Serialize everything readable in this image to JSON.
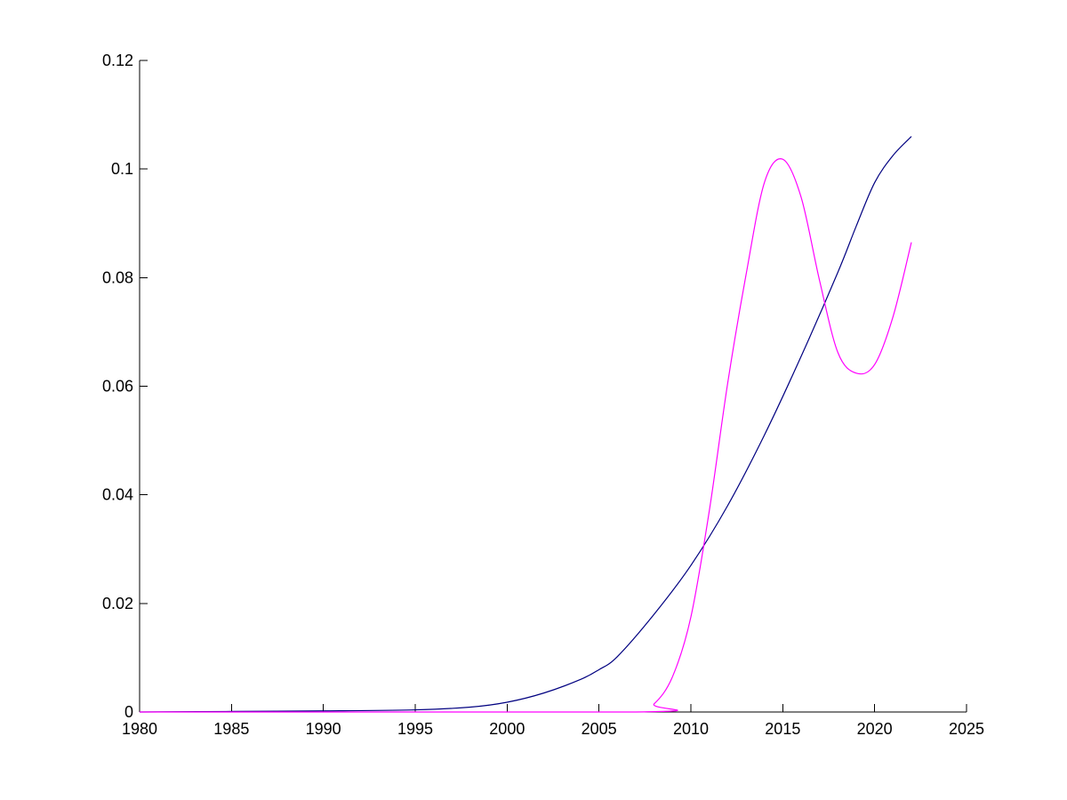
{
  "chart_data": {
    "type": "line",
    "title": "",
    "xlabel": "",
    "ylabel": "",
    "xlim": [
      1980,
      2025
    ],
    "ylim": [
      0,
      0.12
    ],
    "xticks": [
      1980,
      1985,
      1990,
      1995,
      2000,
      2005,
      2010,
      2015,
      2020,
      2025
    ],
    "xtick_labels": [
      "1980",
      "1985",
      "1990",
      "1995",
      "2000",
      "2005",
      "2010",
      "2015",
      "2020",
      "2025"
    ],
    "yticks": [
      0,
      0.02,
      0.04,
      0.06,
      0.08,
      0.1,
      0.12
    ],
    "ytick_labels": [
      "0",
      "0.02",
      "0.04",
      "0.06",
      "0.08",
      "0.1",
      "0.12"
    ],
    "grid": false,
    "legend": "none",
    "series": [
      {
        "color": "#000080",
        "x": [
          1980,
          1985,
          1990,
          1995,
          1998,
          2000,
          2002,
          2004,
          2005,
          2006,
          2008,
          2010,
          2012,
          2014,
          2016,
          2018,
          2019,
          2020,
          2021,
          2022
        ],
        "y": [
          0,
          0.0001,
          0.0002,
          0.0004,
          0.0009,
          0.0018,
          0.0035,
          0.006,
          0.0078,
          0.0102,
          0.018,
          0.027,
          0.038,
          0.051,
          0.0655,
          0.081,
          0.0895,
          0.0975,
          0.1025,
          0.106
        ]
      },
      {
        "color": "#ff00ff",
        "x": [
          1980,
          2007,
          2008,
          2009,
          2010,
          2011,
          2012,
          2013,
          2014,
          2015,
          2016,
          2017,
          2018,
          2019,
          2020,
          2021,
          2022
        ],
        "y": [
          0,
          0,
          0.0015,
          0.0065,
          0.0175,
          0.037,
          0.0605,
          0.0805,
          0.0975,
          0.1018,
          0.0948,
          0.0795,
          0.0662,
          0.0624,
          0.064,
          0.0728,
          0.0865
        ]
      }
    ]
  }
}
